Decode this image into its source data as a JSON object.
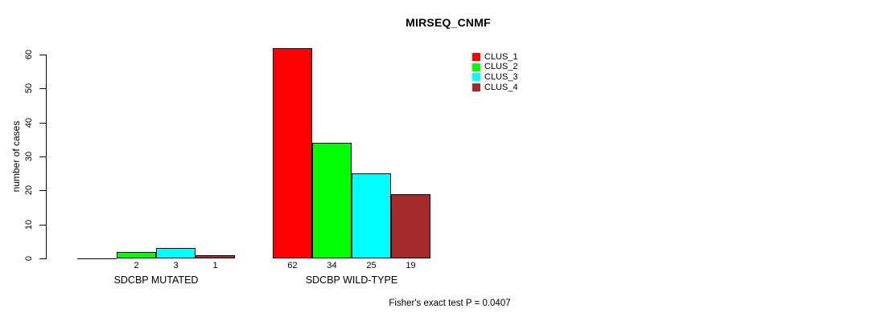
{
  "chart_data": {
    "type": "bar",
    "title": "MIRSEQ_CNMF",
    "ylabel": "number of cases",
    "xlabel": "",
    "ylim": [
      0,
      60
    ],
    "yticks": [
      0,
      10,
      20,
      30,
      40,
      50,
      60
    ],
    "grid": false,
    "legend_position": "top-right",
    "legend": [
      "CLUS_1",
      "CLUS_2",
      "CLUS_3",
      "CLUS_4"
    ],
    "categories": [
      "SDCBP MUTATED",
      "SDCBP WILD-TYPE"
    ],
    "series": [
      {
        "name": "CLUS_1",
        "color": "#ff0000",
        "values": [
          0,
          62
        ]
      },
      {
        "name": "CLUS_2",
        "color": "#00ff00",
        "values": [
          2,
          34
        ]
      },
      {
        "name": "CLUS_3",
        "color": "#00ffff",
        "values": [
          3,
          25
        ]
      },
      {
        "name": "CLUS_4",
        "color": "#a52a2a",
        "values": [
          1,
          19
        ]
      }
    ],
    "bar_labels": [
      [
        "",
        "2",
        "3",
        "1"
      ],
      [
        "62",
        "34",
        "25",
        "19"
      ]
    ],
    "annotation": "Fisher's exact test P = 0.0407"
  },
  "colors": {
    "background": "#ffffff",
    "axis": "#000000",
    "bar_border": "#000000"
  }
}
